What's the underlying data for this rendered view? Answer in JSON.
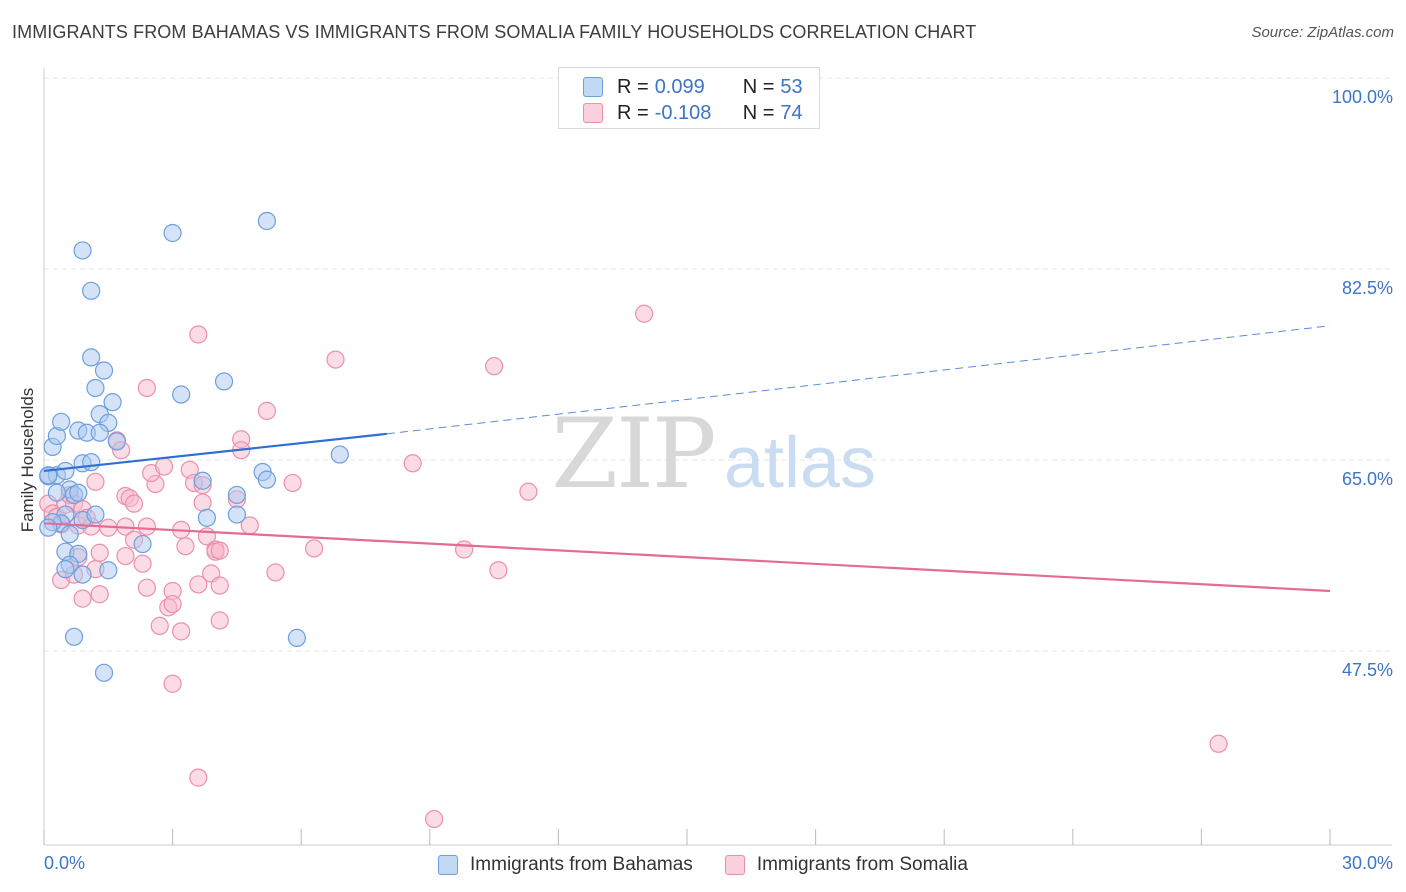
{
  "chart_data": {
    "type": "scatter",
    "title": "IMMIGRANTS FROM BAHAMAS VS IMMIGRANTS FROM SOMALIA FAMILY HOUSEHOLDS CORRELATION CHART",
    "source": "Source: ZipAtlas.com",
    "ylabel": "Family Households",
    "xlim": [
      0,
      30
    ],
    "ylim": [
      30,
      102
    ],
    "x_tick_labels": [
      "0.0%",
      "30.0%"
    ],
    "y_ticks": [
      {
        "value": 100,
        "label": "100.0%"
      },
      {
        "value": 82.5,
        "label": "82.5%"
      },
      {
        "value": 65,
        "label": "65.0%"
      },
      {
        "value": 47.5,
        "label": "47.5%"
      }
    ],
    "watermark": {
      "zip": "ZIP",
      "atlas": "atlas"
    },
    "colors": {
      "bahamas_fill": "#a9c8f0",
      "bahamas_stroke": "#6d9fe0",
      "bahamas_line": "#2f6fd1",
      "somalia_fill": "#f7b9cc",
      "somalia_stroke": "#ec8fad",
      "somalia_line": "#e46b93",
      "tick_label": "#3d74c7",
      "grid": "#e4e4e4"
    },
    "series": [
      {
        "name": "Immigrants from Bahamas",
        "r_label": "R =",
        "r_value": "0.099",
        "n_label": "N =",
        "n_value": "53",
        "trend": {
          "x0": 0,
          "y0": 64.0,
          "x1": 8.0,
          "y1": 67.4,
          "dash_to_x": 30,
          "dash_to_y": 77.3
        },
        "points": [
          [
            0.2,
            66.2
          ],
          [
            0.3,
            67.2
          ],
          [
            0.4,
            68.5
          ],
          [
            0.1,
            63.5
          ],
          [
            0.3,
            63.6
          ],
          [
            0.5,
            64.0
          ],
          [
            0.6,
            62.3
          ],
          [
            0.7,
            61.8
          ],
          [
            0.8,
            62.0
          ],
          [
            0.5,
            60.0
          ],
          [
            0.4,
            59.2
          ],
          [
            0.9,
            59.5
          ],
          [
            1.2,
            60.0
          ],
          [
            0.6,
            58.2
          ],
          [
            0.5,
            56.6
          ],
          [
            0.8,
            56.4
          ],
          [
            0.6,
            55.4
          ],
          [
            0.5,
            55.0
          ],
          [
            0.9,
            54.5
          ],
          [
            1.5,
            54.9
          ],
          [
            0.7,
            48.8
          ],
          [
            1.4,
            45.5
          ],
          [
            0.9,
            84.2
          ],
          [
            1.1,
            80.5
          ],
          [
            1.1,
            74.4
          ],
          [
            1.4,
            73.2
          ],
          [
            1.2,
            71.6
          ],
          [
            1.6,
            70.3
          ],
          [
            1.3,
            69.2
          ],
          [
            1.5,
            68.4
          ],
          [
            0.8,
            67.7
          ],
          [
            0.9,
            64.7
          ],
          [
            1.1,
            64.8
          ],
          [
            1.0,
            67.5
          ],
          [
            1.3,
            67.5
          ],
          [
            1.7,
            66.7
          ],
          [
            3.0,
            85.8
          ],
          [
            5.2,
            86.9
          ],
          [
            4.2,
            72.2
          ],
          [
            3.2,
            71.0
          ],
          [
            3.7,
            63.1
          ],
          [
            4.5,
            61.8
          ],
          [
            4.5,
            60.0
          ],
          [
            3.8,
            59.7
          ],
          [
            5.1,
            63.9
          ],
          [
            5.2,
            63.2
          ],
          [
            6.9,
            65.5
          ],
          [
            2.3,
            57.3
          ],
          [
            5.9,
            48.7
          ],
          [
            0.1,
            63.6
          ],
          [
            0.3,
            62.0
          ],
          [
            0.2,
            59.3
          ],
          [
            0.1,
            58.8
          ]
        ]
      },
      {
        "name": "Immigrants from Somalia",
        "r_label": "R =",
        "r_value": "-0.108",
        "n_label": "N =",
        "n_value": "74",
        "trend": {
          "x0": 0,
          "y0": 59.2,
          "x1": 30,
          "y1": 53.0
        },
        "points": [
          [
            0.1,
            61.0
          ],
          [
            0.2,
            60.1
          ],
          [
            0.3,
            59.8
          ],
          [
            0.4,
            59.1
          ],
          [
            0.5,
            60.9
          ],
          [
            0.6,
            61.8
          ],
          [
            0.7,
            61.0
          ],
          [
            0.8,
            59.0
          ],
          [
            0.9,
            60.5
          ],
          [
            1.0,
            59.7
          ],
          [
            1.1,
            58.9
          ],
          [
            1.2,
            63.0
          ],
          [
            0.4,
            54.0
          ],
          [
            0.7,
            54.5
          ],
          [
            0.9,
            52.3
          ],
          [
            1.3,
            52.7
          ],
          [
            0.8,
            56.1
          ],
          [
            1.2,
            55.0
          ],
          [
            1.3,
            56.5
          ],
          [
            1.7,
            66.8
          ],
          [
            1.8,
            65.9
          ],
          [
            1.9,
            61.7
          ],
          [
            2.0,
            61.5
          ],
          [
            2.1,
            61.0
          ],
          [
            1.9,
            58.9
          ],
          [
            2.1,
            57.7
          ],
          [
            1.9,
            56.2
          ],
          [
            2.3,
            55.5
          ],
          [
            2.4,
            58.9
          ],
          [
            2.6,
            62.8
          ],
          [
            2.5,
            63.8
          ],
          [
            2.8,
            64.4
          ],
          [
            2.4,
            53.3
          ],
          [
            3.0,
            53.0
          ],
          [
            2.9,
            51.5
          ],
          [
            3.0,
            51.8
          ],
          [
            3.2,
            49.3
          ],
          [
            3.4,
            64.1
          ],
          [
            3.5,
            62.9
          ],
          [
            3.7,
            61.1
          ],
          [
            3.2,
            58.6
          ],
          [
            3.3,
            57.1
          ],
          [
            3.8,
            58.0
          ],
          [
            3.6,
            53.6
          ],
          [
            3.9,
            54.6
          ],
          [
            4.0,
            56.8
          ],
          [
            4.0,
            56.6
          ],
          [
            4.1,
            53.5
          ],
          [
            4.1,
            50.3
          ],
          [
            3.6,
            76.5
          ],
          [
            4.6,
            66.9
          ],
          [
            4.6,
            65.9
          ],
          [
            4.8,
            59.0
          ],
          [
            5.2,
            69.5
          ],
          [
            5.4,
            54.7
          ],
          [
            5.8,
            62.9
          ],
          [
            6.3,
            56.9
          ],
          [
            6.8,
            74.2
          ],
          [
            8.6,
            64.7
          ],
          [
            9.8,
            56.8
          ],
          [
            10.5,
            73.6
          ],
          [
            10.6,
            54.9
          ],
          [
            11.3,
            62.1
          ],
          [
            14.0,
            78.4
          ],
          [
            3.0,
            44.5
          ],
          [
            3.6,
            35.9
          ],
          [
            9.1,
            32.1
          ],
          [
            27.4,
            39.0
          ],
          [
            2.4,
            71.6
          ],
          [
            4.1,
            56.7
          ],
          [
            2.7,
            49.8
          ],
          [
            1.5,
            58.8
          ],
          [
            3.7,
            62.7
          ],
          [
            4.5,
            61.4
          ]
        ]
      }
    ]
  }
}
